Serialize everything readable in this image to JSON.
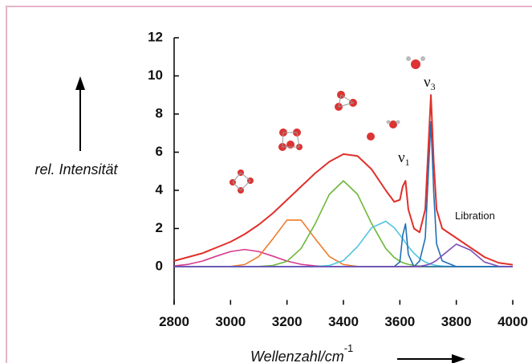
{
  "chart_data": {
    "type": "line",
    "x_label": "Wellenzahl/cm",
    "x_label_exponent": "-1",
    "y_label": "rel. Intensität",
    "xlim": [
      2800,
      4000
    ],
    "xticks": [
      2800,
      3000,
      3200,
      3400,
      3600,
      3800,
      4000
    ],
    "ylim": [
      -2,
      12
    ],
    "yticks": [
      0,
      2,
      4,
      6,
      8,
      10,
      12
    ],
    "x": [
      2800,
      2850,
      2900,
      2950,
      3000,
      3050,
      3100,
      3150,
      3200,
      3250,
      3300,
      3350,
      3400,
      3450,
      3500,
      3550,
      3580,
      3600,
      3610,
      3620,
      3630,
      3650,
      3670,
      3690,
      3700,
      3710,
      3720,
      3730,
      3750,
      3800,
      3850,
      3900,
      3950,
      4000
    ],
    "series": [
      {
        "color": "#d8398e",
        "values": [
          0.04,
          0.12,
          0.29,
          0.55,
          0.79,
          0.9,
          0.79,
          0.55,
          0.29,
          0.12,
          0.04,
          0.01,
          0,
          0,
          0,
          0,
          0,
          0,
          0,
          0,
          0,
          0,
          0,
          0,
          0,
          0,
          0,
          0,
          0,
          0,
          0,
          0,
          0,
          0
        ]
      },
      {
        "color": "#ef7b2b",
        "values": [
          0,
          0,
          0,
          0,
          0.01,
          0.11,
          0.53,
          1.46,
          2.44,
          2.44,
          1.46,
          0.53,
          0.11,
          0.01,
          0,
          0,
          0,
          0,
          0,
          0,
          0,
          0,
          0,
          0,
          0,
          0,
          0,
          0,
          0,
          0,
          0,
          0,
          0,
          0
        ]
      },
      {
        "color": "#6db83b",
        "values": [
          0,
          0,
          0,
          0,
          0,
          0,
          0.01,
          0.06,
          0.28,
          0.95,
          2.25,
          3.79,
          4.5,
          3.79,
          2.25,
          0.95,
          0.48,
          0.28,
          0.21,
          0.16,
          0.12,
          0.06,
          0.03,
          0.01,
          0,
          0,
          0,
          0,
          0,
          0,
          0,
          0,
          0,
          0
        ]
      },
      {
        "color": "#4ec5df",
        "values": [
          0,
          0,
          0,
          0,
          0,
          0,
          0,
          0,
          0,
          0,
          0.01,
          0.06,
          0.32,
          1.05,
          2.04,
          2.38,
          2.04,
          1.66,
          1.46,
          1.25,
          1.05,
          0.7,
          0.43,
          0.24,
          0.18,
          0.13,
          0.09,
          0.06,
          0.03,
          0,
          0,
          0,
          0,
          0
        ]
      },
      {
        "color": "#1f6fb5",
        "values": [
          0,
          0,
          0,
          0,
          0,
          0,
          0,
          0,
          0,
          0,
          0,
          0,
          0,
          0,
          0,
          0,
          0,
          0.25,
          1.64,
          2.24,
          0.64,
          0,
          0,
          0,
          0,
          0,
          0,
          0,
          0,
          0,
          0,
          0,
          0,
          0
        ]
      },
      {
        "color": "#1f6fb5",
        "values": [
          0,
          0,
          0,
          0,
          0,
          0,
          0,
          0,
          0,
          0,
          0,
          0,
          0,
          0,
          0,
          0,
          0,
          0,
          0,
          0,
          0,
          0,
          0.3,
          1.5,
          4.6,
          7.6,
          3.9,
          1.2,
          0.3,
          0,
          0,
          0,
          0,
          0
        ]
      },
      {
        "color": "#7b4fb8",
        "values": [
          0,
          0,
          0,
          0,
          0,
          0,
          0,
          0,
          0,
          0,
          0,
          0,
          0,
          0,
          0,
          0,
          0,
          0,
          0,
          0,
          0,
          0.01,
          0.02,
          0.07,
          0.11,
          0.16,
          0.24,
          0.33,
          0.58,
          1.18,
          0.87,
          0.24,
          0.02,
          0
        ]
      },
      {
        "color": "#e0302a",
        "values": [
          0.3,
          0.5,
          0.7,
          1.0,
          1.3,
          1.7,
          2.2,
          2.8,
          3.5,
          4.2,
          4.9,
          5.5,
          5.9,
          5.8,
          5.1,
          4.0,
          3.4,
          3.5,
          4.2,
          4.5,
          3.0,
          2.0,
          1.8,
          3.0,
          6.0,
          9.0,
          5.5,
          3.0,
          2.0,
          1.5,
          1.0,
          0.5,
          0.2,
          0.1
        ]
      }
    ],
    "annotations": [
      {
        "text": "ν",
        "subscript": "1"
      },
      {
        "text": "ν",
        "subscript": "3"
      },
      {
        "text": "Libration"
      }
    ]
  }
}
